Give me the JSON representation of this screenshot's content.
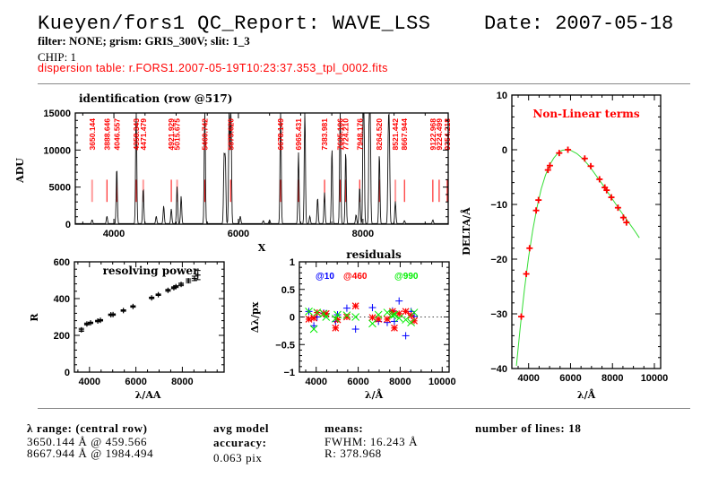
{
  "header": {
    "title": "Kueyen/fors1 QC_Report: WAVE_LSS",
    "date": "Date: 2007-05-18",
    "filter_line": "filter: NONE; grism: GRIS_300V; slit: 1_3",
    "chip": "CHIP: 1",
    "dispersion_table": "dispersion table: r.FORS1.2007-05-19T10:23:37.353_tpl_0002.fits"
  },
  "colors": {
    "red": "#ff0000",
    "blue": "#0000ff",
    "green": "#00ee00",
    "curve": "#33dd33",
    "frame": "#000000",
    "separator": "#888888"
  },
  "chart_data": [
    {
      "id": "identification",
      "type": "line",
      "title": "identification (row @517)",
      "xlabel": "X",
      "ylabel": "ADU",
      "xlim": [
        3380,
        9370
      ],
      "ylim": [
        0,
        15000
      ],
      "xticks": [
        4000,
        6000,
        8000
      ],
      "yticks": [
        0,
        5000,
        10000,
        15000
      ],
      "spectrum_peaks": [
        [
          3650,
          500
        ],
        [
          3888,
          1000
        ],
        [
          4046,
          7600
        ],
        [
          4358,
          16000
        ],
        [
          4471,
          4800
        ],
        [
          4680,
          1000
        ],
        [
          4800,
          2400
        ],
        [
          4922,
          2000
        ],
        [
          5015,
          5000
        ],
        [
          5080,
          3700
        ],
        [
          5460,
          16000
        ],
        [
          5770,
          8700
        ],
        [
          5790,
          8500
        ],
        [
          5852,
          16000
        ],
        [
          5880,
          16000
        ],
        [
          6030,
          1000
        ],
        [
          6400,
          400
        ],
        [
          6500,
          500
        ],
        [
          6678,
          16000
        ],
        [
          6965,
          9600
        ],
        [
          7067,
          16000
        ],
        [
          7147,
          1000
        ],
        [
          7272,
          3500
        ],
        [
          7383,
          4200
        ],
        [
          7503,
          10200
        ],
        [
          7635,
          16000
        ],
        [
          7724,
          9800
        ],
        [
          7890,
          1200
        ],
        [
          7948,
          5000
        ],
        [
          8006,
          13000
        ],
        [
          8014,
          16000
        ],
        [
          8103,
          16000
        ],
        [
          8115,
          16000
        ],
        [
          8264,
          9500
        ],
        [
          8408,
          11000
        ],
        [
          8424,
          11200
        ],
        [
          8521,
          3000
        ],
        [
          8667,
          400
        ],
        [
          9123,
          500
        ]
      ],
      "identified_lines": [
        {
          "label": "3650.144",
          "x": 3650.144,
          "weak": true
        },
        {
          "label": "3888.646",
          "x": 3888.646,
          "weak": false
        },
        {
          "label": "4046.557",
          "x": 4046.557,
          "weak": false
        },
        {
          "label": "4358.343",
          "x": 4358.343,
          "weak": false
        },
        {
          "label": "4471.479",
          "x": 4471.479,
          "weak": true
        },
        {
          "label": "4921.929",
          "x": 4921.929,
          "weak": false
        },
        {
          "label": "5015.675",
          "x": 5015.675,
          "weak": true
        },
        {
          "label": "5460.742",
          "x": 5460.742,
          "weak": false
        },
        {
          "label": "5875.620",
          "x": 5875.62,
          "weak": false
        },
        {
          "label": "6678.149",
          "x": 6678.149,
          "weak": false
        },
        {
          "label": "6965.431",
          "x": 6965.431,
          "weak": false
        },
        {
          "label": "7383.981",
          "x": 7383.981,
          "weak": false
        },
        {
          "label": "7635.106",
          "x": 7635.106,
          "weak": false
        },
        {
          "label": "7724.210",
          "x": 7724.21,
          "weak": false
        },
        {
          "label": "7948.176",
          "x": 7948.176,
          "weak": false
        },
        {
          "label": "8264.520",
          "x": 8264.52,
          "weak": false
        },
        {
          "label": "8521.442",
          "x": 8521.442,
          "weak": true
        },
        {
          "label": "8667.944",
          "x": 8667.944,
          "weak": false
        },
        {
          "label": "9122.968",
          "x": 9122.968,
          "weak": false
        },
        {
          "label": "9224.499",
          "x": 9224.499,
          "weak": false
        },
        {
          "label": "9354.218",
          "x": 9354.218,
          "weak": false
        }
      ],
      "marker_range": [
        3000,
        6000
      ]
    },
    {
      "id": "resolving_power",
      "type": "scatter",
      "title": "resolving power",
      "xlabel": "λ/AA",
      "ylabel": "R",
      "xlim": [
        3350,
        9800
      ],
      "ylim": [
        0,
        600
      ],
      "xticks": [
        4000,
        6000,
        8000
      ],
      "yticks": [
        0,
        200,
        400,
        600
      ],
      "points": [
        {
          "x": 3650,
          "y": 230,
          "err": 8
        },
        {
          "x": 3888,
          "y": 262,
          "err": 5
        },
        {
          "x": 4046,
          "y": 268,
          "err": 4
        },
        {
          "x": 4358,
          "y": 278,
          "err": 4
        },
        {
          "x": 4471,
          "y": 282,
          "err": 4
        },
        {
          "x": 4922,
          "y": 312,
          "err": 4
        },
        {
          "x": 5015,
          "y": 313,
          "err": 4
        },
        {
          "x": 5460,
          "y": 335,
          "err": 4
        },
        {
          "x": 5875,
          "y": 357,
          "err": 4
        },
        {
          "x": 6678,
          "y": 404,
          "err": 4
        },
        {
          "x": 6965,
          "y": 421,
          "err": 4
        },
        {
          "x": 7383,
          "y": 445,
          "err": 5
        },
        {
          "x": 7635,
          "y": 459,
          "err": 5
        },
        {
          "x": 7724,
          "y": 465,
          "err": 5
        },
        {
          "x": 7948,
          "y": 477,
          "err": 7
        },
        {
          "x": 8264,
          "y": 497,
          "err": 10
        },
        {
          "x": 8521,
          "y": 510,
          "err": 12
        },
        {
          "x": 8667,
          "y": 528,
          "err": 25
        }
      ]
    },
    {
      "id": "residuals",
      "type": "scatter",
      "title": "residuals",
      "xlabel": "λ/Å",
      "ylabel": "Δλ/px",
      "xlim": [
        3200,
        10330
      ],
      "ylim": [
        -1,
        1
      ],
      "xticks": [
        4000,
        6000,
        8000,
        10000
      ],
      "yticks": [
        -1,
        -0.5,
        0,
        0.5,
        1
      ],
      "ytick_labels": [
        "−1",
        "−0.5",
        "0",
        "0.5",
        "1"
      ],
      "x": [
        3650,
        3888,
        4046,
        4358,
        4471,
        4922,
        5015,
        5460,
        5875,
        6678,
        6965,
        7383,
        7635,
        7724,
        7948,
        8264,
        8521,
        8667
      ],
      "series": [
        {
          "name": "@10",
          "color": "#0000ff",
          "marker": "plus",
          "values": [
            0.1,
            -0.16,
            0.0,
            0.07,
            0.06,
            -0.08,
            0.04,
            0.16,
            -0.22,
            0.17,
            -0.08,
            -0.1,
            0.11,
            -0.08,
            0.29,
            -0.34,
            0.1,
            0.01
          ]
        },
        {
          "name": "@460",
          "color": "#ff0000",
          "marker": "asterisk",
          "values": [
            -0.04,
            -0.02,
            0.08,
            0.06,
            0.06,
            -0.2,
            -0.05,
            0.0,
            0.2,
            -0.01,
            -0.04,
            -0.04,
            0.1,
            -0.2,
            0.06,
            0.1,
            0.03,
            -0.07
          ]
        },
        {
          "name": "@990",
          "color": "#00ee00",
          "marker": "cross",
          "values": [
            0.1,
            -0.22,
            0.08,
            0.06,
            0.0,
            -0.03,
            0.04,
            0.03,
            0.0,
            -0.12,
            0.04,
            0.08,
            0.03,
            0.04,
            -0.02,
            -0.05,
            -0.1,
            0.08
          ]
        }
      ],
      "legend": "top-inside"
    },
    {
      "id": "nonlinear",
      "type": "line",
      "title": "Non-Linear terms",
      "xlabel": "λ/Å",
      "ylabel": "DELTA/Å",
      "xlim": [
        3200,
        10300
      ],
      "ylim": [
        -40,
        10
      ],
      "xticks": [
        4000,
        6000,
        8000,
        10000
      ],
      "yticks": [
        -40,
        -30,
        -20,
        -10,
        0,
        10
      ],
      "ytick_labels": [
        "−40",
        "−30",
        "−20",
        "−10",
        "0",
        "10"
      ],
      "points": {
        "x": [
          3650,
          3888,
          4046,
          4358,
          4471,
          4922,
          5015,
          5460,
          5875,
          6678,
          6965,
          7383,
          7635,
          7724,
          7948,
          8264,
          8521,
          8667
        ],
        "y": [
          -30.5,
          -22.7,
          -18.0,
          -11.1,
          -9.2,
          -3.7,
          -2.9,
          -0.6,
          0.0,
          -1.6,
          -3.0,
          -5.4,
          -6.9,
          -7.4,
          -8.7,
          -10.6,
          -12.4,
          -13.3
        ]
      },
      "fit_curve": {
        "x": [
          3420,
          3600,
          3800,
          4000,
          4200,
          4400,
          4600,
          4800,
          5000,
          5200,
          5400,
          5600,
          5800,
          6000,
          6300,
          6600,
          6900,
          7200,
          7500,
          7800,
          8100,
          8400,
          8700,
          9000,
          9280
        ],
        "y": [
          -39.5,
          -32.4,
          -25.6,
          -19.6,
          -14.6,
          -10.5,
          -7.2,
          -4.7,
          -2.8,
          -1.5,
          -0.6,
          -0.1,
          0.0,
          -0.1,
          -0.7,
          -1.7,
          -3.0,
          -4.6,
          -6.2,
          -7.9,
          -9.6,
          -11.3,
          -12.9,
          -14.5,
          -16.1
        ]
      }
    }
  ],
  "footer": {
    "range_title": "λ range: (central row)",
    "range_min": "3650.144 Å @ 459.566",
    "range_max": "8667.944 Å @ 1984.494",
    "accuracy_line1": "avg model",
    "accuracy_line2": "accuracy:",
    "accuracy_value": "0.063 pix",
    "means_title": "means:",
    "fwhm": "FWHM: 16.243 Å",
    "r_mean": "R: 378.968",
    "num_lines": "number of lines: 18"
  }
}
